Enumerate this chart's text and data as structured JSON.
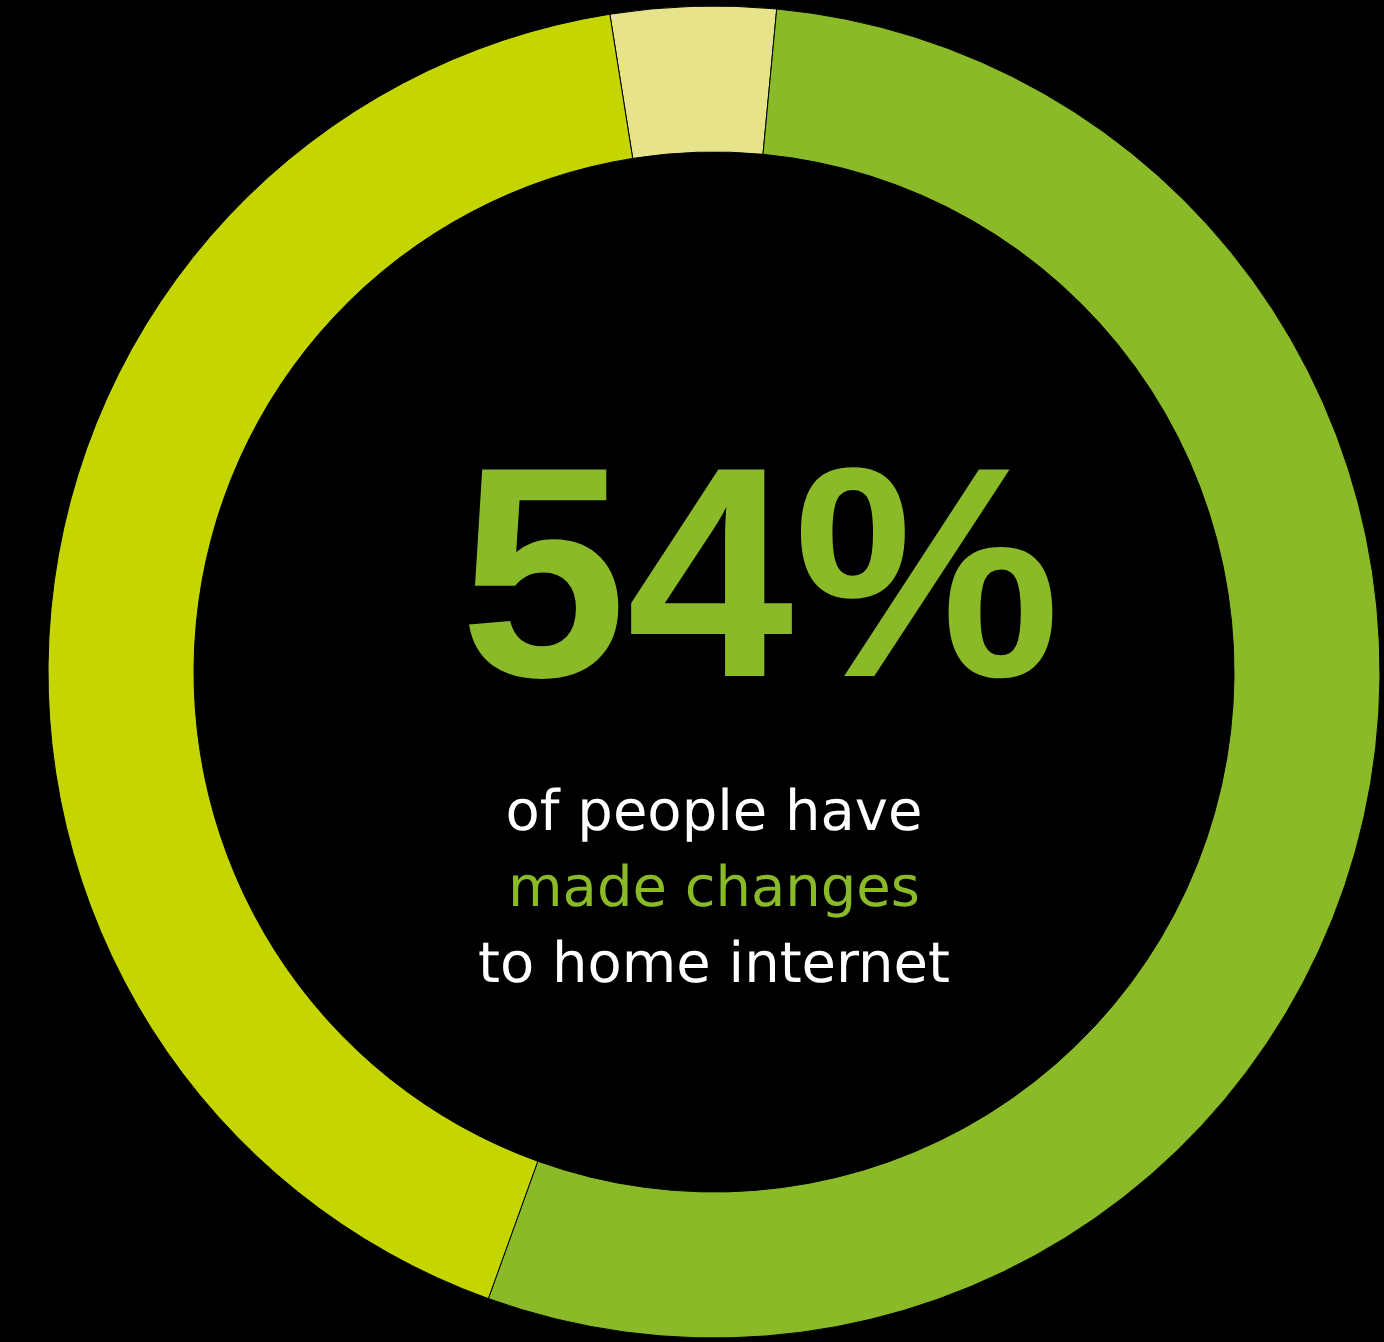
{
  "chart_data": {
    "type": "donut",
    "categories": [
      null,
      null,
      null
    ],
    "values": [
      4,
      54,
      42
    ],
    "colors": [
      "#e6e38a",
      "#8aba28",
      "#c5d500"
    ],
    "value_labels": [
      null,
      "54%",
      null
    ],
    "annotations": [
      "of people have",
      "made changes",
      "to home internet"
    ]
  }
}
